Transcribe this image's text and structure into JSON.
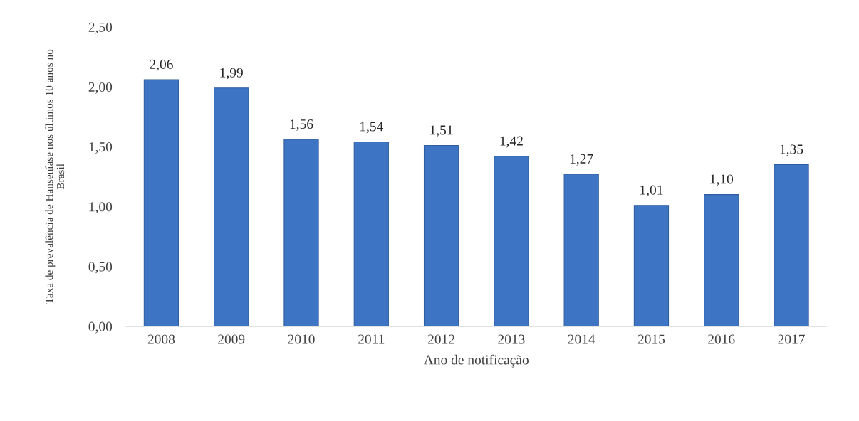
{
  "chart_data": {
    "type": "bar",
    "xlabel": "Ano de notificação",
    "ylabel": "Taxa de prevalência de Hanseníase nos últimos 10 anos no\nBrasil",
    "categories": [
      "2008",
      "2009",
      "2010",
      "2011",
      "2012",
      "2013",
      "2014",
      "2015",
      "2016",
      "2017"
    ],
    "values": [
      2.06,
      1.99,
      1.56,
      1.54,
      1.51,
      1.42,
      1.27,
      1.01,
      1.1,
      1.35
    ],
    "value_labels": [
      "2,06",
      "1,99",
      "1,56",
      "1,54",
      "1,51",
      "1,42",
      "1,27",
      "1,01",
      "1,10",
      "1,35"
    ],
    "color": "#3d75c4",
    "ylim": [
      0,
      2.5
    ],
    "yticks": [
      {
        "value": 0,
        "label": "0,00"
      },
      {
        "value": 0.5,
        "label": "0,50"
      },
      {
        "value": 1.0,
        "label": "1,00"
      },
      {
        "value": 1.5,
        "label": "1,50"
      },
      {
        "value": 2.0,
        "label": "2,00"
      },
      {
        "value": 2.5,
        "label": "2,50"
      }
    ]
  }
}
